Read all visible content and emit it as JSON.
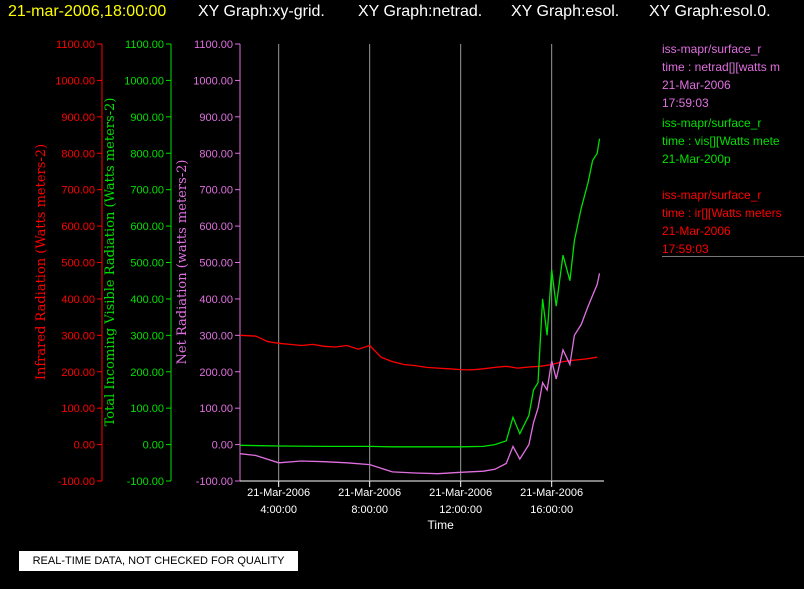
{
  "header": {
    "timestamp": "21-mar-2006,18:00:00",
    "graphs": [
      "XY Graph:xy-grid.",
      "XY Graph:netrad.",
      "XY Graph:esol.",
      "XY Graph:esol.0."
    ]
  },
  "legend": [
    {
      "source": "iss-mapr/surface_r",
      "variable": "time : netrad[][watts m",
      "date": "21-Mar-2006",
      "time": "17:59:03",
      "color": "#e070e0"
    },
    {
      "source": "iss-mapr/surface_r",
      "variable": "time : vis[][Watts mete",
      "date": "21-Mar-200p",
      "time": "",
      "color": "#00e000"
    },
    {
      "source": "iss-mapr/surface_r",
      "variable": "time : ir[][Watts meters",
      "date": "21-Mar-2006",
      "time": "17:59:03",
      "color": "#ff0000"
    }
  ],
  "note": "REAL-TIME DATA, NOT CHECKED FOR QUALITY",
  "chart_data": {
    "type": "line",
    "xlabel": "Time",
    "x_tick_labels": [
      [
        "21-Mar-2006",
        "4:00:00"
      ],
      [
        "21-Mar-2006",
        "8:00:00"
      ],
      [
        "21-Mar-2006",
        "12:00:00"
      ],
      [
        "21-Mar-2006",
        "16:00:00"
      ]
    ],
    "x_tick_hours": [
      4,
      8,
      12,
      16
    ],
    "x_range_hours": [
      2.3,
      18.3
    ],
    "grid": "vertical lines at x ticks",
    "y_axes": [
      {
        "label": "Infrared Radiation (Watts meters-2)",
        "color": "#ff0000",
        "ylim": [
          -100,
          1100
        ]
      },
      {
        "label": "Total Incoming Visible Radiation (Watts meters-2)",
        "color": "#00e000",
        "ylim": [
          -100,
          1100
        ]
      },
      {
        "label": "Net Radiation (watts meters-2)",
        "color": "#e070e0",
        "ylim": [
          -100,
          1100
        ]
      }
    ],
    "y_tick_labels": [
      "1100.00",
      "1000.00",
      "900.00",
      "800.00",
      "700.00",
      "600.00",
      "500.00",
      "400.00",
      "300.00",
      "200.00",
      "100.00",
      "0.00",
      "-100.00"
    ],
    "y_tick_values": [
      1100,
      1000,
      900,
      800,
      700,
      600,
      500,
      400,
      300,
      200,
      100,
      0,
      -100
    ],
    "series": [
      {
        "color": "#ff0000",
        "x": [
          2.3,
          3.0,
          3.5,
          4.0,
          4.5,
          5.0,
          5.5,
          6.0,
          6.5,
          7.0,
          7.5,
          8.0,
          8.5,
          9.0,
          9.5,
          10.0,
          10.5,
          11.0,
          11.5,
          12.0,
          12.5,
          13.0,
          13.5,
          14.0,
          14.5,
          15.0,
          15.5,
          16.0,
          16.5,
          17.0,
          17.5,
          18.0
        ],
        "y": [
          300,
          298,
          283,
          278,
          275,
          272,
          275,
          270,
          268,
          272,
          262,
          272,
          240,
          228,
          220,
          217,
          212,
          210,
          208,
          206,
          205,
          208,
          212,
          215,
          210,
          213,
          215,
          220,
          228,
          232,
          235,
          240
        ]
      },
      {
        "color": "#00e000",
        "x": [
          2.3,
          4.0,
          6.0,
          8.0,
          9.0,
          10.0,
          12.0,
          13.0,
          13.5,
          14.0,
          14.3,
          14.6,
          15.0,
          15.2,
          15.4,
          15.6,
          15.8,
          16.0,
          16.2,
          16.5,
          16.8,
          17.0,
          17.3,
          17.6,
          17.8,
          18.0,
          18.1
        ],
        "y": [
          -2,
          -4,
          -5,
          -5,
          -6,
          -6,
          -6,
          -5,
          0,
          10,
          75,
          30,
          80,
          150,
          170,
          400,
          300,
          480,
          380,
          520,
          450,
          560,
          650,
          720,
          780,
          800,
          840
        ]
      },
      {
        "color": "#e070e0",
        "x": [
          2.3,
          3.0,
          4.0,
          5.0,
          6.0,
          7.0,
          8.0,
          8.5,
          9.0,
          10.0,
          11.0,
          12.0,
          13.0,
          13.5,
          14.0,
          14.3,
          14.6,
          15.0,
          15.2,
          15.4,
          15.6,
          15.8,
          16.0,
          16.2,
          16.5,
          16.8,
          17.0,
          17.3,
          17.6,
          18.0,
          18.1
        ],
        "y": [
          -25,
          -30,
          -50,
          -45,
          -47,
          -50,
          -55,
          -65,
          -75,
          -78,
          -80,
          -76,
          -73,
          -68,
          -52,
          -5,
          -40,
          0,
          60,
          100,
          170,
          150,
          230,
          180,
          260,
          220,
          300,
          330,
          380,
          440,
          470
        ]
      }
    ]
  }
}
